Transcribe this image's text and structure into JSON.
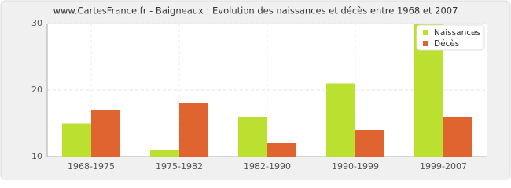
{
  "chart_data": {
    "type": "bar",
    "title": "www.CartesFrance.fr - Baigneaux : Evolution des naissances et décès entre 1968 et 2007",
    "categories": [
      "1968-1975",
      "1975-1982",
      "1982-1990",
      "1990-1999",
      "1999-2007"
    ],
    "series": [
      {
        "name": "Naissances",
        "color": "#bbe02f",
        "values": [
          15,
          11,
          16,
          21,
          30
        ]
      },
      {
        "name": "Décès",
        "color": "#e0642f",
        "values": [
          17,
          18,
          12,
          14,
          16
        ]
      }
    ],
    "ylim": [
      10,
      30
    ],
    "yticks": [
      10,
      20,
      30
    ],
    "grid": true,
    "legend": "top-right"
  }
}
